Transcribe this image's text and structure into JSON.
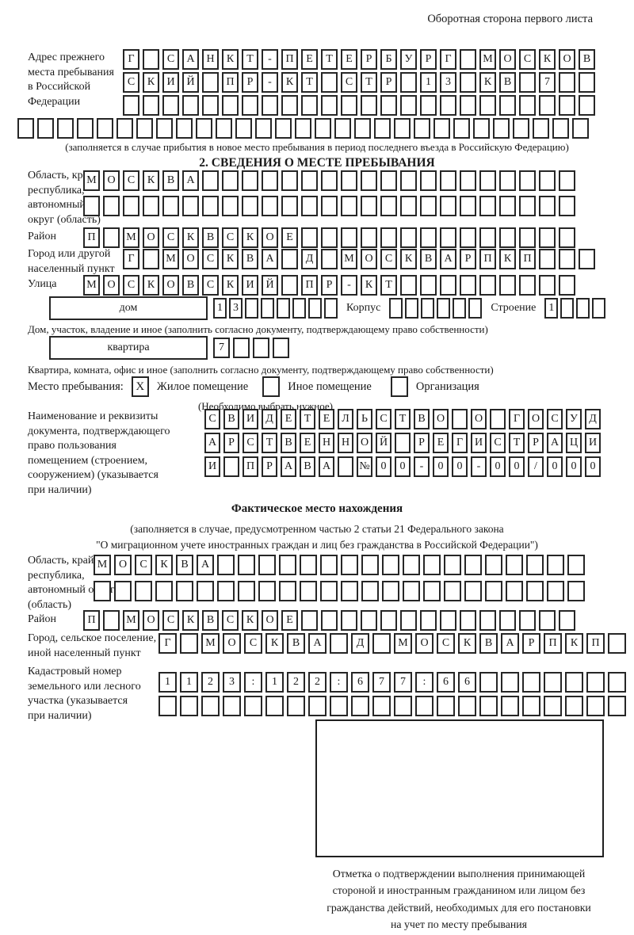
{
  "page": {
    "header_note": "Оборотная сторона первого листа",
    "section2_title": "2. СВЕДЕНИЯ О МЕСТЕ ПРЕБЫВАНИЯ",
    "factual_title": "Фактическое место нахождения",
    "factual_caption_1": "(заполняется в случае, предусмотренном частью 2 статьи 21 Федерального закона",
    "factual_caption_2": "\"О миграционном учете иностранных граждан и лиц без гражданства в Российской Федерации\")"
  },
  "prev_address": {
    "label": "Адрес прежнего\nместа пребывания\nв Российской\nФедерации",
    "rows": [
      "Г САНКТ-ПЕТЕРБУРГ МОСКОВ",
      "СКИЙ ПР-КТ СТР 13 КВ 7  ",
      "                        "
    ],
    "overflow_row": "                             ",
    "caption": "(заполняется в случае прибытия в новое место пребывания в период последнего въезда в Российскую Федерацию)"
  },
  "section2": {
    "oblast": {
      "label": "Область, край,\nреспублика,\nавтономный\nокруг (область)",
      "rows": [
        "МОСКВА                   ",
        "                         "
      ]
    },
    "raion": {
      "label": "Район",
      "row": "П МОСКВСКОЕ              "
    },
    "gorod": {
      "label": "Город или другой\nнаселенный пункт",
      "row": "Г МОСКВА Д МОСКВАРПКП   "
    },
    "ulitsa": {
      "label": "Улица",
      "row": "МОСКОВСКИЙ ПР-КТ         "
    },
    "dom": {
      "box_label": "дом",
      "cells": "13      ",
      "korpus_label": "Корпус",
      "korpus_cells": "      ",
      "stroenie_label": "Строение",
      "stroenie_cells": "1   ",
      "caption": "Дом, участок, владение и иное (заполнить согласно документу, подтверждающему право собственности)"
    },
    "kvartira": {
      "box_label": "квартира",
      "cells": "7   ",
      "caption": "Квартира, комната, офис и иное (заполнить согласно документу, подтверждающему право собственности)"
    },
    "mesto": {
      "label": "Место пребывания:",
      "options": [
        {
          "mark": "X",
          "label": "Жилое помещение"
        },
        {
          "mark": "",
          "label": "Иное помещение"
        },
        {
          "mark": "",
          "label": "Организация"
        }
      ],
      "caption": "(Необходимо выбрать нужное)"
    },
    "document": {
      "label": "Наименование и реквизиты\nдокумента, подтверждающего\nправо пользования\nпомещением (строением,\nсооружением) (указывается\nпри наличии)",
      "rows": [
        "СВИДЕТЕЛЬСТВО О ГОСУД",
        "АРСТВЕННОЙ РЕГИСТРАЦИ",
        "И ПРАВА №00-00-00/000"
      ]
    }
  },
  "factual": {
    "oblast": {
      "label": "Область, край,\nреспублика,\nавтономный округ\n(область)",
      "rows": [
        "МОСКВА                  ",
        "                        "
      ]
    },
    "raion": {
      "label": "Район",
      "row": "П МОСКВСКОЕ              "
    },
    "gorod": {
      "label": "Город, сельское поселение,\nиной населенный пункт",
      "row": "Г МОСКВА Д МОСКВАРПКП "
    },
    "kadastr": {
      "label": "Кадастровый номер\nземельного или лесного\nучастка (указывается\nпри наличии)",
      "rows": [
        "1123:122:677:66       ",
        "                      "
      ]
    }
  },
  "stamp": {
    "caption": "Отметка о подтверждении выполнения принимающей\nстороной и иностранным гражданином или лицом без\nгражданства действий, необходимых для его постановки\nна учет по месту пребывания"
  }
}
